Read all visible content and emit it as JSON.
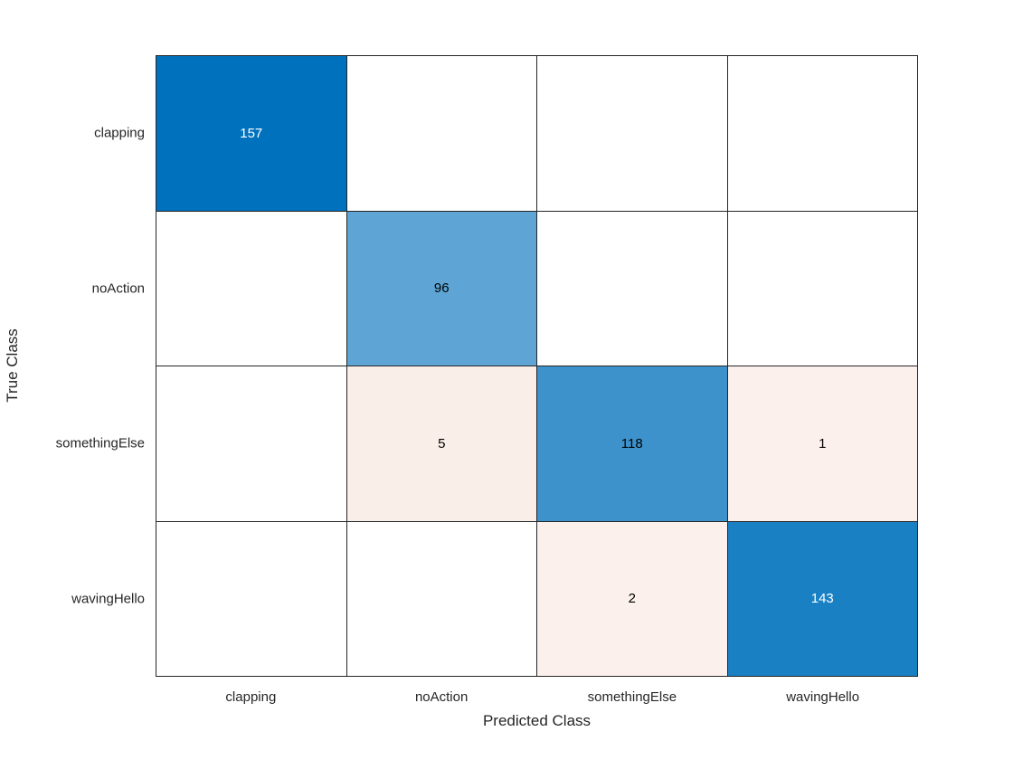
{
  "figure": {
    "background": "#ffffff",
    "grid_line_color": "#262626",
    "text_color": "#262626"
  },
  "chart_data": {
    "type": "heatmap",
    "subtype": "confusion-matrix",
    "title": "",
    "xlabel": "Predicted Class",
    "ylabel": "True Class",
    "x_categories": [
      "clapping",
      "noAction",
      "somethingElse",
      "wavingHello"
    ],
    "y_categories": [
      "clapping",
      "noAction",
      "somethingElse",
      "wavingHello"
    ],
    "matrix": [
      [
        157,
        0,
        0,
        0
      ],
      [
        0,
        96,
        0,
        0
      ],
      [
        0,
        5,
        118,
        1
      ],
      [
        0,
        0,
        2,
        143
      ]
    ],
    "show_zero_values": false,
    "cell_colors": [
      [
        "#0072BD",
        "#ffffff",
        "#ffffff",
        "#ffffff"
      ],
      [
        "#ffffff",
        "#5EA5D5",
        "#ffffff",
        "#ffffff"
      ],
      [
        "#ffffff",
        "#FAEEE9",
        "#3D92CC",
        "#FBF0EC"
      ],
      [
        "#ffffff",
        "#ffffff",
        "#FBF0EC",
        "#1A80C4"
      ]
    ],
    "cell_text_colors": [
      [
        "#ffffff",
        "#000000",
        "#000000",
        "#000000"
      ],
      [
        "#000000",
        "#000000",
        "#000000",
        "#000000"
      ],
      [
        "#000000",
        "#000000",
        "#000000",
        "#000000"
      ],
      [
        "#000000",
        "#000000",
        "#000000",
        "#ffffff"
      ]
    ],
    "legend_position": "none",
    "grid_on": true
  }
}
